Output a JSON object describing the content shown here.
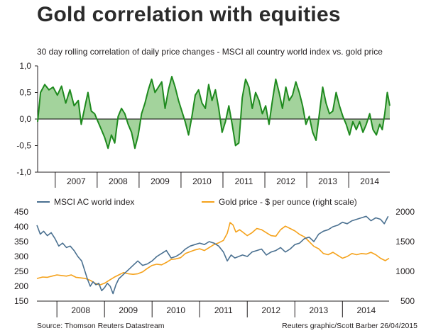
{
  "title": "Gold correlation with equities",
  "source": "Source: Thomson Reuters Datastream",
  "credit": "Reuters graphic/Scott Barber 26/04/2015",
  "colors": {
    "correlation": "#1e8a1e",
    "correlation_fill": "#a3d39c",
    "msci": "#4a7090",
    "gold": "#f5a21b",
    "axis": "#231f20"
  },
  "chart_data": [
    {
      "type": "area",
      "subtitle": "30 day rolling correlation of daily price changes - MSCI all country world index vs. gold price",
      "ylim": [
        -1.0,
        1.0
      ],
      "yticks": [
        1.0,
        0.5,
        0.0,
        -0.5,
        -1.0
      ],
      "ytick_labels": [
        "1,0",
        "0,5",
        "0,0",
        "-0,5",
        "-1,0"
      ],
      "xlim": [
        2006.58,
        2014.98
      ],
      "year_labels": [
        "2007",
        "2008",
        "2009",
        "2010",
        "2011",
        "2012",
        "2013",
        "2014"
      ],
      "series": [
        {
          "name": "Correlation",
          "x": [
            2006.58,
            2006.65,
            2006.75,
            2006.85,
            2006.95,
            2007.05,
            2007.15,
            2007.25,
            2007.35,
            2007.45,
            2007.55,
            2007.62,
            2007.7,
            2007.78,
            2007.86,
            2007.94,
            2008.02,
            2008.1,
            2008.18,
            2008.26,
            2008.34,
            2008.42,
            2008.5,
            2008.58,
            2008.66,
            2008.74,
            2008.82,
            2008.9,
            2008.98,
            2009.06,
            2009.14,
            2009.22,
            2009.3,
            2009.38,
            2009.46,
            2009.54,
            2009.62,
            2009.7,
            2009.78,
            2009.86,
            2009.94,
            2010.02,
            2010.1,
            2010.18,
            2010.26,
            2010.34,
            2010.42,
            2010.5,
            2010.58,
            2010.66,
            2010.74,
            2010.82,
            2010.9,
            2010.98,
            2011.06,
            2011.14,
            2011.22,
            2011.3,
            2011.38,
            2011.46,
            2011.54,
            2011.62,
            2011.7,
            2011.78,
            2011.86,
            2011.94,
            2012.02,
            2012.1,
            2012.18,
            2012.26,
            2012.34,
            2012.42,
            2012.5,
            2012.58,
            2012.66,
            2012.74,
            2012.82,
            2012.9,
            2012.98,
            2013.06,
            2013.14,
            2013.22,
            2013.3,
            2013.38,
            2013.46,
            2013.54,
            2013.62,
            2013.7,
            2013.78,
            2013.86,
            2013.94,
            2014.02,
            2014.1,
            2014.18,
            2014.26,
            2014.34,
            2014.42,
            2014.5,
            2014.58,
            2014.66,
            2014.74,
            2014.8,
            2014.86,
            2014.92,
            2014.98
          ],
          "values": [
            -0.05,
            0.5,
            0.65,
            0.55,
            0.6,
            0.45,
            0.62,
            0.3,
            0.55,
            0.25,
            0.35,
            -0.1,
            0.2,
            0.5,
            0.15,
            0.1,
            -0.05,
            -0.2,
            -0.35,
            -0.55,
            -0.3,
            -0.45,
            0.05,
            0.2,
            0.1,
            -0.1,
            -0.25,
            -0.55,
            -0.3,
            0.1,
            0.3,
            0.55,
            0.75,
            0.5,
            0.6,
            0.7,
            0.2,
            0.55,
            0.8,
            0.6,
            0.35,
            0.15,
            -0.05,
            -0.3,
            0.05,
            0.45,
            0.55,
            0.3,
            0.2,
            0.65,
            0.35,
            0.55,
            0.2,
            -0.25,
            -0.05,
            0.25,
            -0.1,
            -0.5,
            -0.45,
            0.4,
            0.75,
            0.6,
            0.2,
            0.5,
            0.35,
            0.1,
            0.25,
            -0.1,
            0.35,
            0.75,
            0.5,
            0.2,
            0.6,
            0.35,
            0.45,
            0.7,
            0.5,
            0.25,
            -0.1,
            0.05,
            -0.25,
            -0.4,
            0.1,
            0.6,
            0.3,
            0.1,
            0.15,
            0.5,
            0.25,
            0.05,
            -0.1,
            -0.3,
            -0.05,
            -0.2,
            -0.05,
            -0.25,
            -0.1,
            0.1,
            -0.2,
            -0.3,
            -0.1,
            -0.2,
            0.1,
            0.5,
            0.25
          ]
        }
      ]
    },
    {
      "type": "line",
      "legend": "top",
      "ylim_left": [
        150,
        450
      ],
      "yticks_left": [
        450,
        400,
        350,
        300,
        250,
        200,
        150
      ],
      "ylim_right": [
        500,
        2000
      ],
      "yticks_right": [
        2000,
        1500,
        1000,
        500
      ],
      "xlim": [
        2007.58,
        2014.98
      ],
      "year_labels": [
        "2008",
        "2009",
        "2010",
        "2011",
        "2012",
        "2013",
        "2014"
      ],
      "series": [
        {
          "name": "MSCI AC world index",
          "axis": "left",
          "x": [
            2007.58,
            2007.65,
            2007.72,
            2007.8,
            2007.88,
            2007.96,
            2008.04,
            2008.12,
            2008.2,
            2008.28,
            2008.36,
            2008.44,
            2008.52,
            2008.58,
            2008.64,
            2008.7,
            2008.76,
            2008.82,
            2008.88,
            2008.94,
            2009.0,
            2009.06,
            2009.12,
            2009.18,
            2009.24,
            2009.3,
            2009.4,
            2009.5,
            2009.6,
            2009.7,
            2009.8,
            2009.9,
            2010.0,
            2010.1,
            2010.2,
            2010.3,
            2010.4,
            2010.5,
            2010.6,
            2010.7,
            2010.8,
            2010.9,
            2011.0,
            2011.1,
            2011.2,
            2011.3,
            2011.4,
            2011.5,
            2011.58,
            2011.66,
            2011.74,
            2011.82,
            2011.9,
            2012.0,
            2012.1,
            2012.2,
            2012.3,
            2012.4,
            2012.5,
            2012.6,
            2012.7,
            2012.8,
            2012.9,
            2013.0,
            2013.1,
            2013.2,
            2013.3,
            2013.4,
            2013.5,
            2013.6,
            2013.7,
            2013.8,
            2013.9,
            2014.0,
            2014.1,
            2014.2,
            2014.3,
            2014.4,
            2014.5,
            2014.6,
            2014.7,
            2014.8,
            2014.88,
            2014.96
          ],
          "values": [
            405,
            375,
            385,
            370,
            380,
            360,
            335,
            345,
            330,
            335,
            320,
            300,
            285,
            255,
            225,
            200,
            215,
            205,
            210,
            185,
            195,
            210,
            200,
            175,
            205,
            225,
            240,
            255,
            270,
            285,
            270,
            275,
            285,
            300,
            310,
            320,
            295,
            300,
            310,
            325,
            335,
            340,
            345,
            340,
            350,
            345,
            335,
            315,
            285,
            305,
            295,
            300,
            305,
            300,
            315,
            320,
            325,
            305,
            315,
            320,
            330,
            315,
            325,
            340,
            345,
            360,
            365,
            350,
            375,
            385,
            390,
            400,
            405,
            415,
            410,
            420,
            425,
            430,
            435,
            420,
            430,
            425,
            410,
            435
          ]
        },
        {
          "name": "Gold price - $ per ounce (right scale)",
          "axis": "right",
          "x": [
            2007.58,
            2007.7,
            2007.8,
            2007.9,
            2008.0,
            2008.1,
            2008.2,
            2008.3,
            2008.4,
            2008.5,
            2008.6,
            2008.7,
            2008.8,
            2008.9,
            2009.0,
            2009.1,
            2009.2,
            2009.3,
            2009.4,
            2009.5,
            2009.6,
            2009.7,
            2009.8,
            2009.9,
            2010.0,
            2010.1,
            2010.2,
            2010.3,
            2010.4,
            2010.5,
            2010.6,
            2010.7,
            2010.8,
            2010.9,
            2011.0,
            2011.1,
            2011.2,
            2011.3,
            2011.4,
            2011.5,
            2011.58,
            2011.64,
            2011.7,
            2011.76,
            2011.84,
            2011.92,
            2012.0,
            2012.1,
            2012.2,
            2012.3,
            2012.4,
            2012.5,
            2012.6,
            2012.7,
            2012.8,
            2012.9,
            2013.0,
            2013.1,
            2013.2,
            2013.3,
            2013.4,
            2013.5,
            2013.6,
            2013.7,
            2013.8,
            2013.9,
            2014.0,
            2014.1,
            2014.2,
            2014.3,
            2014.4,
            2014.5,
            2014.6,
            2014.7,
            2014.8,
            2014.9,
            2014.98
          ],
          "values": [
            880,
            905,
            900,
            920,
            940,
            930,
            920,
            940,
            900,
            890,
            880,
            850,
            800,
            770,
            800,
            850,
            900,
            940,
            980,
            960,
            950,
            960,
            990,
            1050,
            1100,
            1120,
            1110,
            1150,
            1200,
            1210,
            1230,
            1300,
            1330,
            1360,
            1380,
            1350,
            1400,
            1450,
            1480,
            1520,
            1640,
            1820,
            1780,
            1660,
            1700,
            1650,
            1600,
            1650,
            1720,
            1700,
            1650,
            1600,
            1590,
            1700,
            1760,
            1720,
            1680,
            1620,
            1580,
            1500,
            1420,
            1380,
            1300,
            1280,
            1320,
            1270,
            1220,
            1250,
            1300,
            1280,
            1300,
            1290,
            1320,
            1280,
            1220,
            1180,
            1220
          ]
        }
      ]
    }
  ]
}
